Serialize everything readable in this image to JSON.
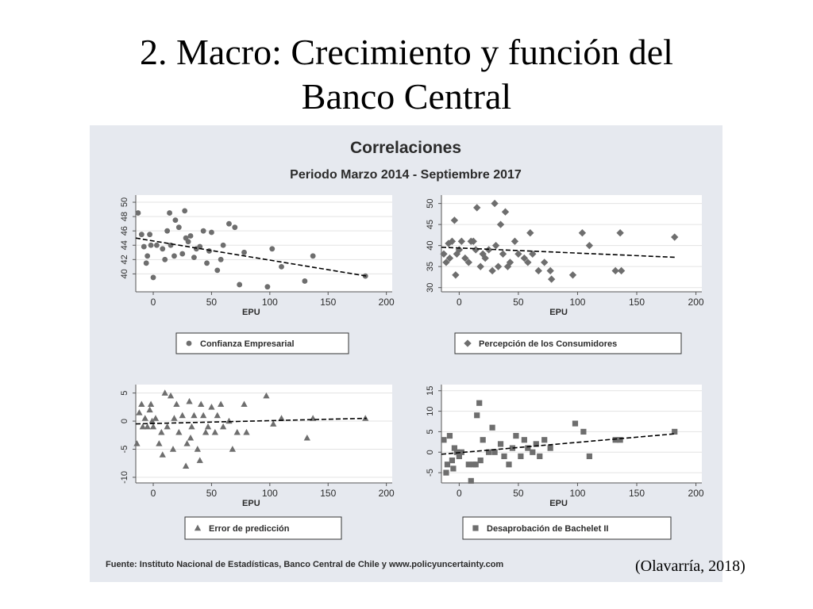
{
  "slide": {
    "title_line1": "2. Macro: Crecimiento y función del",
    "title_line2": "Banco Central",
    "citation": "(Olavarría, 2018)"
  },
  "figure": {
    "title": "Correlaciones",
    "subtitle": "Periodo Marzo 2014 - Septiembre 2017",
    "source": "Fuente: Instituto Nacional de Estadísticas, Banco Central de Chile y www.policyuncertainty.com"
  },
  "colors": {
    "background": "#e6e9ef",
    "plot_area": "#ffffff",
    "markers": "#6e6e6e",
    "fit_line": "#000000"
  },
  "chart_data": [
    {
      "type": "scatter",
      "marker": "circle",
      "legend": "Confianza Empresarial",
      "xlabel": "EPU",
      "ylabel": "",
      "xlim": [
        -15,
        205
      ],
      "ylim": [
        37.5,
        51
      ],
      "xticks": [
        0,
        50,
        100,
        150,
        200
      ],
      "yticks": [
        40,
        42,
        44,
        46,
        48,
        50
      ],
      "points": [
        [
          -13,
          48.5
        ],
        [
          -10,
          45.5
        ],
        [
          -8,
          43.8
        ],
        [
          -6,
          41.5
        ],
        [
          -5,
          42.5
        ],
        [
          -3,
          45.5
        ],
        [
          -2,
          44
        ],
        [
          0,
          39.5
        ],
        [
          3,
          44
        ],
        [
          8,
          43.5
        ],
        [
          10,
          42
        ],
        [
          12,
          46
        ],
        [
          14,
          48.5
        ],
        [
          15,
          44
        ],
        [
          18,
          42.5
        ],
        [
          19,
          47.5
        ],
        [
          22,
          46.5
        ],
        [
          25,
          42.8
        ],
        [
          27,
          48.8
        ],
        [
          28,
          45
        ],
        [
          30,
          44.5
        ],
        [
          32,
          45.3
        ],
        [
          35,
          42.3
        ],
        [
          37,
          43.5
        ],
        [
          40,
          43.8
        ],
        [
          43,
          46
        ],
        [
          46,
          41.5
        ],
        [
          48,
          43.2
        ],
        [
          50,
          45.8
        ],
        [
          55,
          40.5
        ],
        [
          58,
          42
        ],
        [
          60,
          44
        ],
        [
          65,
          47
        ],
        [
          70,
          46.5
        ],
        [
          74,
          38.5
        ],
        [
          78,
          43
        ],
        [
          98,
          38.2
        ],
        [
          102,
          43.5
        ],
        [
          110,
          41
        ],
        [
          130,
          39
        ],
        [
          137,
          42.5
        ],
        [
          182,
          39.7
        ]
      ],
      "fit": {
        "x": [
          -15,
          183
        ],
        "y": [
          45.0,
          39.7
        ]
      }
    },
    {
      "type": "scatter",
      "marker": "diamond",
      "legend": "Percepción de los Consumidores",
      "xlabel": "EPU",
      "ylabel": "",
      "xlim": [
        -15,
        205
      ],
      "ylim": [
        29,
        52
      ],
      "xticks": [
        0,
        50,
        100,
        150,
        200
      ],
      "yticks": [
        30,
        35,
        40,
        45,
        50
      ],
      "points": [
        [
          -13,
          38
        ],
        [
          -11,
          36
        ],
        [
          -9,
          40.5
        ],
        [
          -8,
          37
        ],
        [
          -6,
          41
        ],
        [
          -4,
          46
        ],
        [
          -3,
          33
        ],
        [
          -2,
          38
        ],
        [
          0,
          39
        ],
        [
          2,
          41
        ],
        [
          5,
          37
        ],
        [
          8,
          36
        ],
        [
          10,
          41
        ],
        [
          12,
          41
        ],
        [
          14,
          39
        ],
        [
          15,
          49
        ],
        [
          18,
          35
        ],
        [
          20,
          38
        ],
        [
          22,
          37
        ],
        [
          25,
          39
        ],
        [
          28,
          34
        ],
        [
          30,
          50
        ],
        [
          31,
          40
        ],
        [
          33,
          35
        ],
        [
          35,
          45
        ],
        [
          37,
          38
        ],
        [
          39,
          48
        ],
        [
          41,
          35
        ],
        [
          43,
          36
        ],
        [
          47,
          41
        ],
        [
          50,
          38
        ],
        [
          55,
          37
        ],
        [
          58,
          36
        ],
        [
          60,
          43
        ],
        [
          62,
          38
        ],
        [
          67,
          34
        ],
        [
          72,
          36
        ],
        [
          77,
          34
        ],
        [
          78,
          32
        ],
        [
          96,
          33
        ],
        [
          104,
          43
        ],
        [
          110,
          40
        ],
        [
          132,
          34
        ],
        [
          136,
          43
        ],
        [
          137,
          34
        ],
        [
          182,
          42
        ]
      ],
      "fit": {
        "x": [
          -15,
          183
        ],
        "y": [
          39.6,
          37.2
        ]
      }
    },
    {
      "type": "scatter",
      "marker": "triangle",
      "legend": "Error de predicción",
      "xlabel": "EPU",
      "ylabel": "",
      "xlim": [
        -15,
        205
      ],
      "ylim": [
        -11,
        6.5
      ],
      "xticks": [
        0,
        50,
        100,
        150,
        200
      ],
      "yticks": [
        5,
        0,
        -5,
        -10
      ],
      "points": [
        [
          -14,
          -4
        ],
        [
          -12,
          1.5
        ],
        [
          -10,
          3
        ],
        [
          -9,
          -1
        ],
        [
          -7,
          0.5
        ],
        [
          -5,
          -1
        ],
        [
          -3,
          2
        ],
        [
          -2,
          3
        ],
        [
          -1,
          0
        ],
        [
          0,
          -1
        ],
        [
          2,
          0.5
        ],
        [
          5,
          -4
        ],
        [
          7,
          -2
        ],
        [
          8,
          -6
        ],
        [
          10,
          5
        ],
        [
          12,
          -1
        ],
        [
          15,
          4.5
        ],
        [
          17,
          -5
        ],
        [
          18,
          0.5
        ],
        [
          20,
          3
        ],
        [
          22,
          -2
        ],
        [
          25,
          1
        ],
        [
          28,
          -8
        ],
        [
          29,
          -4
        ],
        [
          31,
          3.5
        ],
        [
          32,
          -3
        ],
        [
          33,
          -1
        ],
        [
          35,
          1
        ],
        [
          38,
          -5
        ],
        [
          40,
          -7
        ],
        [
          41,
          3
        ],
        [
          43,
          1
        ],
        [
          45,
          -2
        ],
        [
          47,
          -1
        ],
        [
          50,
          2.5
        ],
        [
          53,
          -2
        ],
        [
          55,
          1
        ],
        [
          58,
          3
        ],
        [
          60,
          -1
        ],
        [
          65,
          0
        ],
        [
          68,
          -5
        ],
        [
          72,
          -2
        ],
        [
          78,
          3
        ],
        [
          80,
          -2
        ],
        [
          97,
          4.5
        ],
        [
          103,
          -0.5
        ],
        [
          110,
          0.5
        ],
        [
          132,
          -3
        ],
        [
          137,
          0.5
        ],
        [
          182,
          0.5
        ]
      ],
      "fit": {
        "x": [
          -15,
          183
        ],
        "y": [
          -0.5,
          0.5
        ]
      }
    },
    {
      "type": "scatter",
      "marker": "square",
      "legend": "Desaprobación de Bachelet II",
      "xlabel": "EPU",
      "ylabel": "",
      "xlim": [
        -15,
        205
      ],
      "ylim": [
        -7.5,
        16.5
      ],
      "xticks": [
        0,
        50,
        100,
        150,
        200
      ],
      "yticks": [
        -5,
        0,
        5,
        10,
        15
      ],
      "points": [
        [
          -13,
          3
        ],
        [
          -11,
          -5
        ],
        [
          -10,
          -3
        ],
        [
          -8,
          4
        ],
        [
          -6,
          -2
        ],
        [
          -5,
          -4
        ],
        [
          -4,
          1
        ],
        [
          -2,
          0
        ],
        [
          0,
          -1
        ],
        [
          2,
          0
        ],
        [
          8,
          -3
        ],
        [
          10,
          -7
        ],
        [
          12,
          -3
        ],
        [
          14,
          -3
        ],
        [
          15,
          9
        ],
        [
          17,
          12
        ],
        [
          18,
          -2
        ],
        [
          20,
          3
        ],
        [
          25,
          0
        ],
        [
          28,
          6
        ],
        [
          30,
          0
        ],
        [
          35,
          2
        ],
        [
          38,
          -1
        ],
        [
          42,
          -3
        ],
        [
          45,
          1
        ],
        [
          48,
          4
        ],
        [
          52,
          -1
        ],
        [
          55,
          3
        ],
        [
          58,
          1
        ],
        [
          62,
          0
        ],
        [
          65,
          2
        ],
        [
          68,
          -1
        ],
        [
          72,
          3
        ],
        [
          77,
          1
        ],
        [
          98,
          7
        ],
        [
          105,
          5
        ],
        [
          110,
          -1
        ],
        [
          132,
          3
        ],
        [
          136,
          3
        ],
        [
          182,
          5
        ]
      ],
      "fit": {
        "x": [
          -15,
          183
        ],
        "y": [
          -0.5,
          4.5
        ]
      }
    }
  ]
}
